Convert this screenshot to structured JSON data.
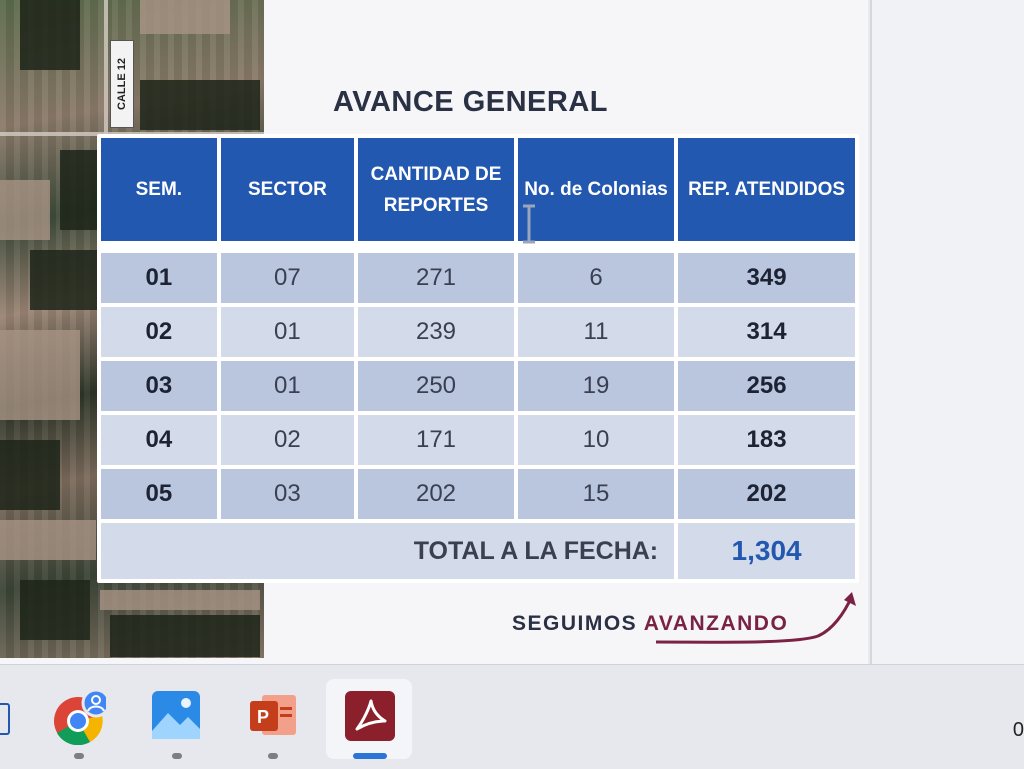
{
  "map": {
    "street_label": "CALLE 12"
  },
  "slide": {
    "title": "AVANCE GENERAL",
    "tagline_prefix": "SEGUIMOS",
    "tagline_accent": "AVANZANDO"
  },
  "table": {
    "headers": {
      "sem": "SEM.",
      "sector": "SECTOR",
      "cantidad": "CANTIDAD DE REPORTES",
      "colonias": "No. de Colonias",
      "atendidos": "REP. ATENDIDOS"
    },
    "rows": [
      {
        "sem": "01",
        "sector": "07",
        "cantidad": "271",
        "colonias": "6",
        "atendidos": "349"
      },
      {
        "sem": "02",
        "sector": "01",
        "cantidad": "239",
        "colonias": "11",
        "atendidos": "314"
      },
      {
        "sem": "03",
        "sector": "01",
        "cantidad": "250",
        "colonias": "19",
        "atendidos": "256"
      },
      {
        "sem": "04",
        "sector": "02",
        "cantidad": "171",
        "colonias": "10",
        "atendidos": "183"
      },
      {
        "sem": "05",
        "sector": "03",
        "cantidad": "202",
        "colonias": "15",
        "atendidos": "202"
      }
    ],
    "total_label": "TOTAL A LA FECHA:",
    "total_value": "1,304"
  },
  "colors": {
    "header_blue": "#2358b0",
    "accent_maroon": "#7a2245",
    "row_dark": "#b9c6de",
    "row_light": "#d3dbea"
  },
  "taskbar": {
    "apps": [
      "chrome-icon",
      "photos-icon",
      "powerpoint-icon",
      "acrobat-pdf-icon"
    ],
    "active_app": "acrobat-pdf-icon",
    "tray_text": "0"
  }
}
